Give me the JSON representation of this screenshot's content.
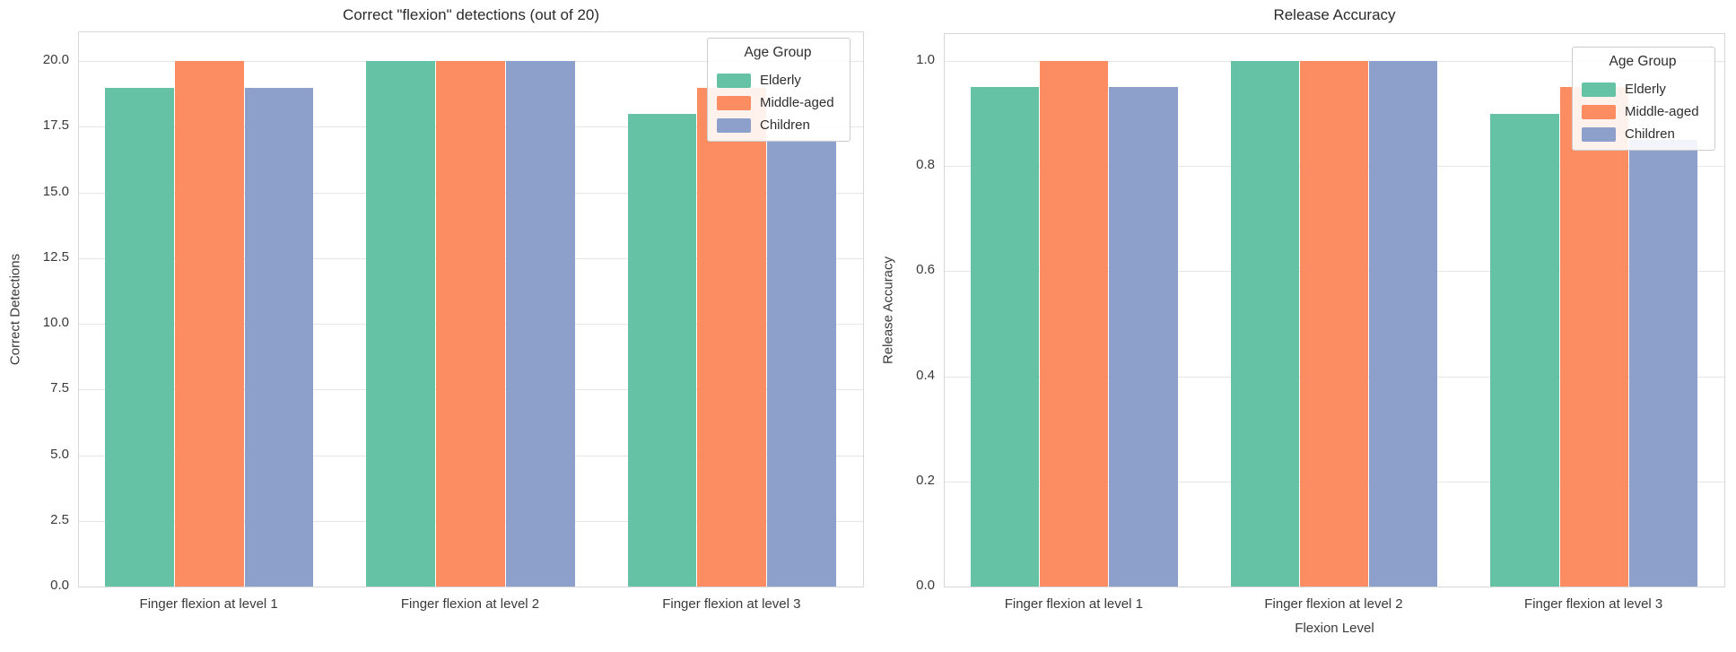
{
  "chart_data": [
    {
      "type": "bar",
      "title": "Correct \"flexion\" detections (out of 20)",
      "xlabel": "",
      "ylabel": "Correct Detections",
      "categories": [
        "Finger flexion at level 1",
        "Finger flexion at level 2",
        "Finger flexion at level 3"
      ],
      "series": [
        {
          "name": "Elderly",
          "color": "#66c2a5",
          "values": [
            19,
            20,
            18
          ]
        },
        {
          "name": "Middle-aged",
          "color": "#fc8d62",
          "values": [
            20,
            20,
            19
          ]
        },
        {
          "name": "Children",
          "color": "#8da0cb",
          "values": [
            19,
            20,
            17
          ]
        }
      ],
      "ylim": [
        0,
        21.1
      ],
      "yticks": [
        "0.0",
        "2.5",
        "5.0",
        "7.5",
        "10.0",
        "12.5",
        "15.0",
        "17.5",
        "20.0"
      ],
      "grid": true,
      "legend": {
        "title": "Age Group",
        "position": "upper right"
      }
    },
    {
      "type": "bar",
      "title": "Release Accuracy",
      "xlabel": "Flexion Level",
      "ylabel": "Release Accuracy",
      "categories": [
        "Finger flexion at level 1",
        "Finger flexion at level 2",
        "Finger flexion at level 3"
      ],
      "series": [
        {
          "name": "Elderly",
          "color": "#66c2a5",
          "values": [
            0.95,
            1.0,
            0.9
          ]
        },
        {
          "name": "Middle-aged",
          "color": "#fc8d62",
          "values": [
            1.0,
            1.0,
            0.95
          ]
        },
        {
          "name": "Children",
          "color": "#8da0cb",
          "values": [
            0.95,
            1.0,
            0.85
          ]
        }
      ],
      "ylim": [
        0,
        1.051
      ],
      "yticks": [
        "0.0",
        "0.2",
        "0.4",
        "0.6",
        "0.8",
        "1.0"
      ],
      "grid": true,
      "legend": {
        "title": "Age Group",
        "position": "upper right"
      }
    }
  ]
}
